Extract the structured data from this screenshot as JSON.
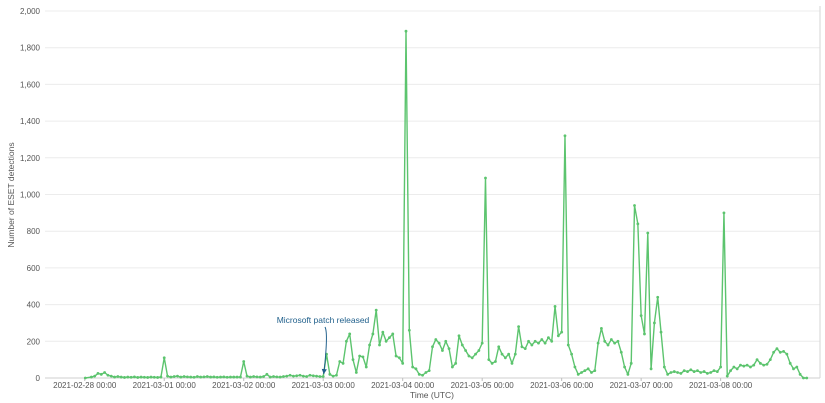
{
  "chart_data": {
    "type": "line",
    "title": "",
    "xlabel": "Time (UTC)",
    "ylabel": "Number of ESET detections",
    "ylim": [
      0,
      2000
    ],
    "yticks": [
      0,
      200,
      400,
      600,
      800,
      1000,
      1200,
      1400,
      1600,
      1800,
      2000
    ],
    "ytick_labels": [
      "0",
      "200",
      "400",
      "600",
      "800",
      "1,000",
      "1,200",
      "1,400",
      "1,600",
      "1,800",
      "2,000"
    ],
    "xlim": [
      "2021-02-27 12:00",
      "2021-03-09 06:00"
    ],
    "xticks": [
      "2021-02-28 00:00",
      "2021-03-01 00:00",
      "2021-03-02 00:00",
      "2021-03-03 00:00",
      "2021-03-04 00:00",
      "2021-03-05 00:00",
      "2021-03-06 00:00",
      "2021-03-07 00:00",
      "2021-03-08 00:00"
    ],
    "grid": {
      "x": false,
      "y": true
    },
    "line_color": "#5cc46e",
    "annotation": {
      "text": "Microsoft patch released",
      "x": "2021-03-03 00:10",
      "y": 5,
      "color": "#1f5f8b"
    },
    "series": [
      {
        "x": [
          "2021-02-28 00:10",
          "2021-02-28 02:00",
          "2021-02-28 03:00",
          "2021-02-28 04:00",
          "2021-02-28 05:00",
          "2021-02-28 06:00",
          "2021-02-28 07:00",
          "2021-02-28 08:00",
          "2021-02-28 09:00",
          "2021-02-28 10:00",
          "2021-02-28 11:00",
          "2021-02-28 12:00",
          "2021-02-28 13:00",
          "2021-02-28 14:00",
          "2021-02-28 15:00",
          "2021-02-28 16:00",
          "2021-02-28 17:00",
          "2021-02-28 18:00",
          "2021-02-28 19:00",
          "2021-02-28 20:00",
          "2021-02-28 21:00",
          "2021-02-28 22:00",
          "2021-02-28 23:00",
          "2021-03-01 00:00",
          "2021-03-01 01:00",
          "2021-03-01 02:00",
          "2021-03-01 03:00",
          "2021-03-01 04:00",
          "2021-03-01 05:00",
          "2021-03-01 06:00",
          "2021-03-01 07:00",
          "2021-03-01 08:00",
          "2021-03-01 09:00",
          "2021-03-01 10:00",
          "2021-03-01 11:00",
          "2021-03-01 12:00",
          "2021-03-01 13:00",
          "2021-03-01 14:00",
          "2021-03-01 15:00",
          "2021-03-01 16:00",
          "2021-03-01 17:00",
          "2021-03-01 18:00",
          "2021-03-01 19:00",
          "2021-03-01 20:00",
          "2021-03-01 21:00",
          "2021-03-01 22:00",
          "2021-03-01 23:00",
          "2021-03-02 00:00",
          "2021-03-02 01:00",
          "2021-03-02 02:00",
          "2021-03-02 03:00",
          "2021-03-02 04:00",
          "2021-03-02 05:00",
          "2021-03-02 06:00",
          "2021-03-02 07:00",
          "2021-03-02 08:00",
          "2021-03-02 09:00",
          "2021-03-02 10:00",
          "2021-03-02 11:00",
          "2021-03-02 12:00",
          "2021-03-02 13:00",
          "2021-03-02 14:00",
          "2021-03-02 15:00",
          "2021-03-02 16:00",
          "2021-03-02 17:00",
          "2021-03-02 18:00",
          "2021-03-02 19:00",
          "2021-03-02 20:00",
          "2021-03-02 21:00",
          "2021-03-02 22:00",
          "2021-03-02 23:00",
          "2021-03-03 00:00",
          "2021-03-03 01:00",
          "2021-03-03 02:00",
          "2021-03-03 03:00",
          "2021-03-03 04:00",
          "2021-03-03 05:00",
          "2021-03-03 06:00",
          "2021-03-03 07:00",
          "2021-03-03 08:00",
          "2021-03-03 09:00",
          "2021-03-03 10:00",
          "2021-03-03 11:00",
          "2021-03-03 12:00",
          "2021-03-03 13:00",
          "2021-03-03 14:00",
          "2021-03-03 15:00",
          "2021-03-03 16:00",
          "2021-03-03 17:00",
          "2021-03-03 18:00",
          "2021-03-03 19:00",
          "2021-03-03 20:00",
          "2021-03-03 21:00",
          "2021-03-03 22:00",
          "2021-03-03 23:00",
          "2021-03-04 00:00",
          "2021-03-04 01:00",
          "2021-03-04 02:00",
          "2021-03-04 03:00",
          "2021-03-04 04:00",
          "2021-03-04 05:00",
          "2021-03-04 06:00",
          "2021-03-04 07:00",
          "2021-03-04 08:00",
          "2021-03-04 09:00",
          "2021-03-04 10:00",
          "2021-03-04 11:00",
          "2021-03-04 12:00",
          "2021-03-04 13:00",
          "2021-03-04 14:00",
          "2021-03-04 15:00",
          "2021-03-04 16:00",
          "2021-03-04 17:00",
          "2021-03-04 18:00",
          "2021-03-04 19:00",
          "2021-03-04 20:00",
          "2021-03-04 21:00",
          "2021-03-04 22:00",
          "2021-03-04 23:00",
          "2021-03-05 00:00",
          "2021-03-05 01:00",
          "2021-03-05 02:00",
          "2021-03-05 03:00",
          "2021-03-05 04:00",
          "2021-03-05 05:00",
          "2021-03-05 06:00",
          "2021-03-05 07:00",
          "2021-03-05 08:00",
          "2021-03-05 09:00",
          "2021-03-05 10:00",
          "2021-03-05 11:00",
          "2021-03-05 12:00",
          "2021-03-05 13:00",
          "2021-03-05 14:00",
          "2021-03-05 15:00",
          "2021-03-05 16:00",
          "2021-03-05 17:00",
          "2021-03-05 18:00",
          "2021-03-05 19:00",
          "2021-03-05 20:00",
          "2021-03-05 21:00",
          "2021-03-05 22:00",
          "2021-03-05 23:00",
          "2021-03-06 00:00",
          "2021-03-06 01:00",
          "2021-03-06 02:00",
          "2021-03-06 03:00",
          "2021-03-06 04:00",
          "2021-03-06 05:00",
          "2021-03-06 06:00",
          "2021-03-06 07:00",
          "2021-03-06 08:00",
          "2021-03-06 09:00",
          "2021-03-06 10:00",
          "2021-03-06 11:00",
          "2021-03-06 12:00",
          "2021-03-06 13:00",
          "2021-03-06 14:00",
          "2021-03-06 15:00",
          "2021-03-06 16:00",
          "2021-03-06 17:00",
          "2021-03-06 18:00",
          "2021-03-06 19:00",
          "2021-03-06 20:00",
          "2021-03-06 21:00",
          "2021-03-06 22:00",
          "2021-03-06 23:00",
          "2021-03-07 00:00",
          "2021-03-07 01:00",
          "2021-03-07 02:00",
          "2021-03-07 03:00",
          "2021-03-07 04:00",
          "2021-03-07 05:00",
          "2021-03-07 06:00",
          "2021-03-07 07:00",
          "2021-03-07 08:00",
          "2021-03-07 09:00",
          "2021-03-07 10:00",
          "2021-03-07 11:00",
          "2021-03-07 12:00",
          "2021-03-07 13:00",
          "2021-03-07 14:00",
          "2021-03-07 15:00",
          "2021-03-07 16:00",
          "2021-03-07 17:00",
          "2021-03-07 18:00",
          "2021-03-07 19:00",
          "2021-03-07 20:00",
          "2021-03-07 21:00",
          "2021-03-07 22:00",
          "2021-03-07 23:00",
          "2021-03-08 00:00",
          "2021-03-08 01:00",
          "2021-03-08 02:00",
          "2021-03-08 03:00",
          "2021-03-08 04:00",
          "2021-03-08 05:00",
          "2021-03-08 06:00",
          "2021-03-08 07:00",
          "2021-03-08 08:00",
          "2021-03-08 09:00",
          "2021-03-08 10:00",
          "2021-03-08 11:00",
          "2021-03-08 12:00",
          "2021-03-08 13:00",
          "2021-03-08 14:00",
          "2021-03-08 15:00",
          "2021-03-08 16:00",
          "2021-03-08 17:00",
          "2021-03-08 18:00",
          "2021-03-08 19:00",
          "2021-03-08 20:00",
          "2021-03-08 21:00",
          "2021-03-08 22:00",
          "2021-03-08 23:00",
          "2021-03-09 00:00",
          "2021-03-09 01:00",
          "2021-03-09 02:00"
        ],
        "values": [
          0,
          5,
          10,
          25,
          20,
          30,
          15,
          10,
          5,
          8,
          5,
          3,
          5,
          4,
          6,
          3,
          5,
          4,
          3,
          5,
          4,
          3,
          5,
          110,
          10,
          5,
          8,
          10,
          5,
          8,
          6,
          5,
          4,
          8,
          5,
          6,
          8,
          5,
          6,
          4,
          5,
          6,
          4,
          5,
          5,
          5,
          5,
          90,
          10,
          5,
          8,
          6,
          5,
          8,
          20,
          5,
          8,
          6,
          5,
          8,
          10,
          15,
          10,
          12,
          15,
          10,
          8,
          15,
          12,
          10,
          8,
          8,
          130,
          20,
          10,
          15,
          90,
          80,
          200,
          240,
          100,
          30,
          120,
          115,
          60,
          180,
          240,
          370,
          180,
          250,
          200,
          220,
          240,
          120,
          110,
          80,
          1890,
          260,
          60,
          50,
          20,
          15,
          30,
          40,
          170,
          210,
          190,
          150,
          200,
          160,
          60,
          80,
          230,
          180,
          150,
          120,
          110,
          130,
          150,
          190,
          1090,
          100,
          80,
          90,
          170,
          130,
          110,
          130,
          80,
          130,
          280,
          170,
          160,
          200,
          180,
          200,
          190,
          210,
          190,
          220,
          200,
          390,
          230,
          250,
          1320,
          180,
          130,
          60,
          20,
          30,
          40,
          50,
          30,
          40,
          190,
          270,
          200,
          180,
          210,
          190,
          200,
          140,
          60,
          20,
          80,
          940,
          840,
          340,
          240,
          790,
          50,
          300,
          440,
          250,
          60,
          20,
          30,
          35,
          30,
          25,
          40,
          35,
          45,
          35,
          40,
          30,
          35,
          25,
          30,
          40,
          35,
          60,
          900,
          10,
          40,
          60,
          50,
          70,
          65,
          70,
          60,
          70,
          100,
          80,
          70,
          75,
          100,
          140,
          160,
          140,
          145,
          130,
          80,
          50,
          60,
          20,
          0,
          0
        ]
      }
    ]
  }
}
